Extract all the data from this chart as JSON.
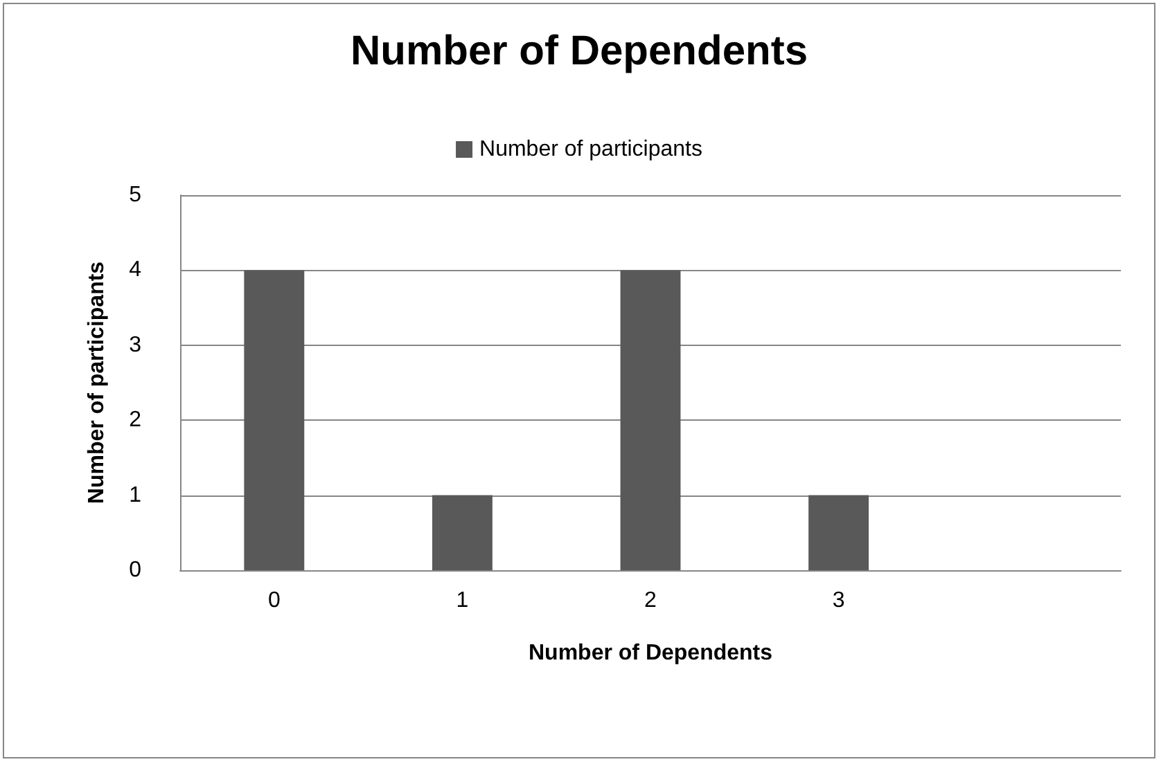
{
  "chart_data": {
    "type": "bar",
    "title": "Number of Dependents",
    "xlabel": "Number of Dependents",
    "ylabel": "Number of participants",
    "categories": [
      "0",
      "1",
      "2",
      "3",
      null
    ],
    "series": [
      {
        "name": "Number of participants",
        "color": "#595959",
        "values": [
          4,
          1,
          4,
          1,
          null
        ]
      }
    ],
    "ylim": [
      0,
      5
    ],
    "yticks": [
      0,
      1,
      2,
      3,
      4,
      5
    ],
    "grid": "y",
    "legend": "top"
  }
}
